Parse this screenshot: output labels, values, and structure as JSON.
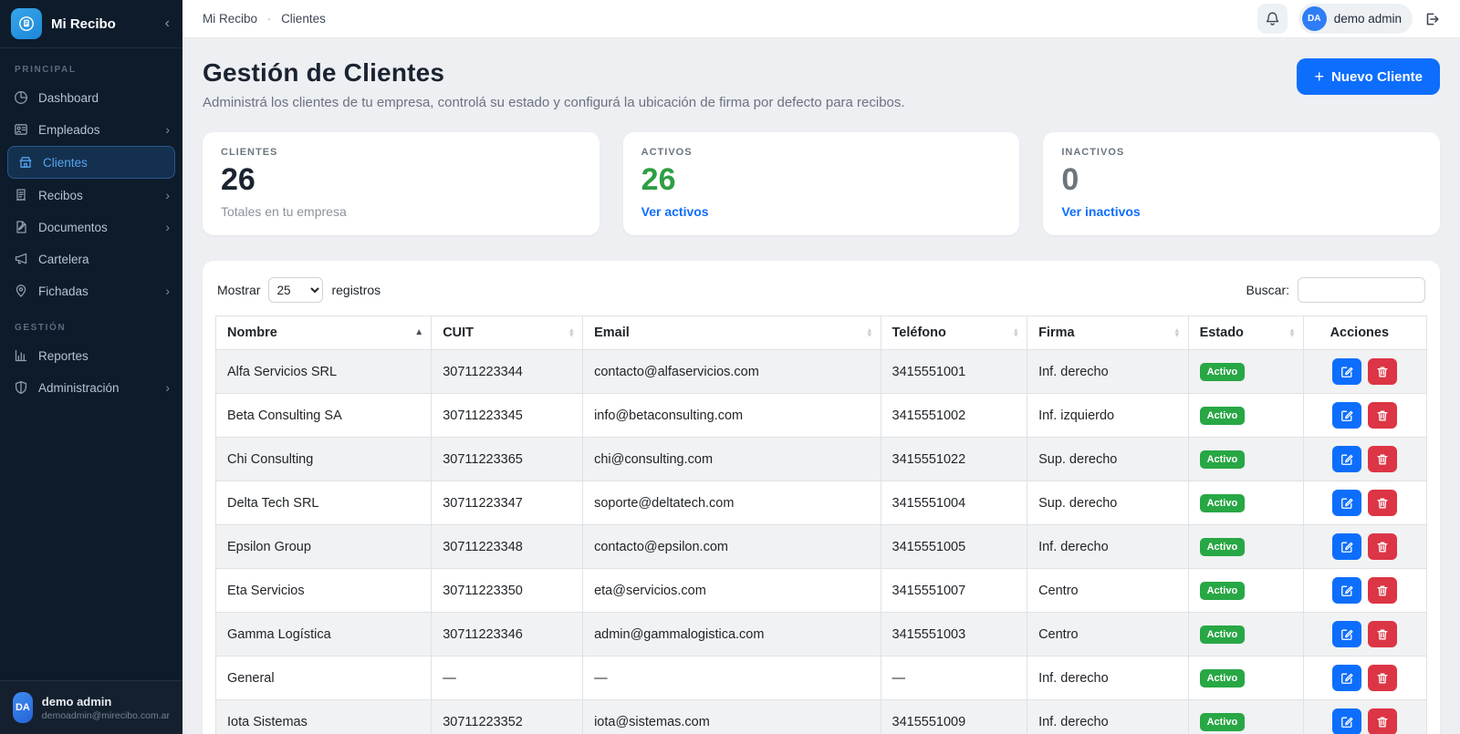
{
  "brand": {
    "name": "Mi Recibo",
    "collapse_icon": "‹"
  },
  "sidebar": {
    "sections": [
      {
        "label": "PRINCIPAL",
        "items": [
          {
            "label": "Dashboard",
            "icon": "pie-chart",
            "active": false,
            "chevron": false
          },
          {
            "label": "Empleados",
            "icon": "employees",
            "active": false,
            "chevron": true
          },
          {
            "label": "Clientes",
            "icon": "clients",
            "active": true,
            "chevron": false
          },
          {
            "label": "Recibos",
            "icon": "receipt",
            "active": false,
            "chevron": true
          },
          {
            "label": "Documentos",
            "icon": "document",
            "active": false,
            "chevron": true
          },
          {
            "label": "Cartelera",
            "icon": "megaphone",
            "active": false,
            "chevron": false
          },
          {
            "label": "Fichadas",
            "icon": "map-pin",
            "active": false,
            "chevron": true
          }
        ]
      },
      {
        "label": "GESTIÓN",
        "items": [
          {
            "label": "Reportes",
            "icon": "bar-chart",
            "active": false,
            "chevron": false
          },
          {
            "label": "Administración",
            "icon": "shield",
            "active": false,
            "chevron": true
          }
        ]
      }
    ],
    "user": {
      "initials": "DA",
      "name": "demo admin",
      "email": "demoadmin@mirecibo.com.ar"
    }
  },
  "header": {
    "breadcrumb_root": "Mi Recibo",
    "breadcrumb_sep": "·",
    "breadcrumb_current": "Clientes",
    "user_initials": "DA",
    "user_name": "demo admin"
  },
  "page": {
    "title": "Gestión de Clientes",
    "subtitle": "Administrá los clientes de tu empresa, controlá su estado y configurá la ubicación de firma por defecto para recibos.",
    "new_button_label": "Nuevo Cliente"
  },
  "stats": [
    {
      "label": "CLIENTES",
      "value": "26",
      "value_color": "#1b2330",
      "sub": "Totales en tu empresa",
      "sub_is_link": false
    },
    {
      "label": "ACTIVOS",
      "value": "26",
      "value_color": "#2f9e44",
      "sub": "Ver activos",
      "sub_is_link": true
    },
    {
      "label": "INACTIVOS",
      "value": "0",
      "value_color": "#6c757d",
      "sub": "Ver inactivos",
      "sub_is_link": true
    }
  ],
  "table": {
    "show_label": "Mostrar",
    "page_size": "25",
    "records_label": "registros",
    "search_label": "Buscar:",
    "search_value": "",
    "columns": [
      {
        "label": "Nombre",
        "sort": "asc",
        "width": "17.8%"
      },
      {
        "label": "CUIT",
        "sort": "both",
        "width": "12.5%"
      },
      {
        "label": "Email",
        "sort": "both",
        "width": "24.6%"
      },
      {
        "label": "Teléfono",
        "sort": "both",
        "width": "12.1%"
      },
      {
        "label": "Firma",
        "sort": "both",
        "width": "13.3%"
      },
      {
        "label": "Estado",
        "sort": "both",
        "width": "9.5%"
      },
      {
        "label": "Acciones",
        "sort": "none",
        "width": "10.2%"
      }
    ],
    "rows": [
      {
        "nombre": "Alfa Servicios SRL",
        "cuit": "30711223344",
        "email": "contacto@alfaservicios.com",
        "telefono": "3415551001",
        "firma": "Inf. derecho",
        "estado": "Activo"
      },
      {
        "nombre": "Beta Consulting SA",
        "cuit": "30711223345",
        "email": "info@betaconsulting.com",
        "telefono": "3415551002",
        "firma": "Inf. izquierdo",
        "estado": "Activo"
      },
      {
        "nombre": "Chi Consulting",
        "cuit": "30711223365",
        "email": "chi@consulting.com",
        "telefono": "3415551022",
        "firma": "Sup. derecho",
        "estado": "Activo"
      },
      {
        "nombre": "Delta Tech SRL",
        "cuit": "30711223347",
        "email": "soporte@deltatech.com",
        "telefono": "3415551004",
        "firma": "Sup. derecho",
        "estado": "Activo"
      },
      {
        "nombre": "Epsilon Group",
        "cuit": "30711223348",
        "email": "contacto@epsilon.com",
        "telefono": "3415551005",
        "firma": "Inf. derecho",
        "estado": "Activo"
      },
      {
        "nombre": "Eta Servicios",
        "cuit": "30711223350",
        "email": "eta@servicios.com",
        "telefono": "3415551007",
        "firma": "Centro",
        "estado": "Activo"
      },
      {
        "nombre": "Gamma Logística",
        "cuit": "30711223346",
        "email": "admin@gammalogistica.com",
        "telefono": "3415551003",
        "firma": "Centro",
        "estado": "Activo"
      },
      {
        "nombre": "General",
        "cuit": "—",
        "email": "—",
        "telefono": "—",
        "firma": "Inf. derecho",
        "estado": "Activo"
      },
      {
        "nombre": "Iota Sistemas",
        "cuit": "30711223352",
        "email": "iota@sistemas.com",
        "telefono": "3415551009",
        "firma": "Inf. derecho",
        "estado": "Activo"
      }
    ]
  },
  "colors": {
    "accent_blue": "#0d6efd",
    "badge_green": "#28a745",
    "danger_red": "#dc3545",
    "sidebar_bg": "#0d1b2b"
  }
}
